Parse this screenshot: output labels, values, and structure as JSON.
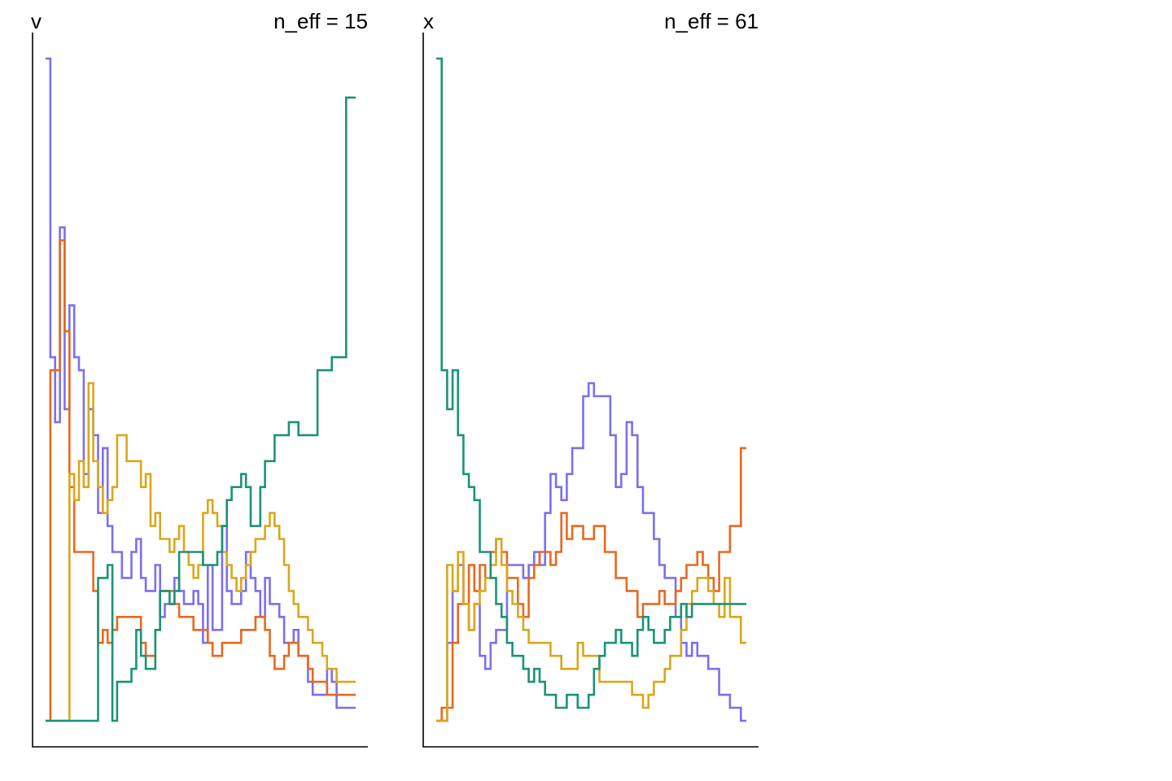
{
  "chart_data": [
    {
      "type": "line",
      "step": true,
      "title": "v",
      "annotation": "n_eff = 15",
      "xlabel": "",
      "ylabel": "",
      "axis_ticks": false,
      "grid": false,
      "series": [
        {
          "color": "#7b6ff0",
          "values": [
            51,
            28,
            23,
            38,
            24,
            32,
            28,
            27,
            19,
            24,
            22,
            16,
            21,
            15,
            13,
            13,
            11,
            11,
            13,
            14,
            11,
            10,
            10,
            12,
            8,
            9,
            9,
            11,
            10,
            9,
            9,
            10,
            9,
            6,
            12,
            7,
            7,
            15,
            10,
            9,
            9,
            10,
            13,
            11,
            10,
            8,
            11,
            9,
            9,
            8,
            6,
            6,
            7,
            5,
            5,
            3,
            2,
            2,
            2,
            4,
            3,
            1,
            1,
            1,
            1
          ]
        },
        {
          "color": "#e8681e",
          "values": [
            0,
            27,
            27,
            37,
            30,
            18,
            13,
            13,
            13,
            13,
            10,
            6,
            7,
            6,
            7,
            8,
            8,
            8,
            8,
            8,
            6,
            5,
            5,
            7,
            10,
            10,
            10,
            9,
            8,
            8,
            8,
            7,
            7,
            7,
            6,
            5,
            5,
            6,
            6,
            6,
            6,
            7,
            7,
            7,
            8,
            8,
            7,
            5,
            4,
            4,
            5,
            6,
            6,
            5,
            5,
            4,
            3,
            3,
            3,
            2,
            2,
            2,
            2,
            2,
            2
          ]
        },
        {
          "color": "#d9a71e",
          "values": [
            0,
            0,
            0,
            0,
            0,
            19,
            17,
            20,
            18,
            26,
            20,
            18,
            16,
            17,
            18,
            22,
            22,
            20,
            20,
            20,
            18,
            19,
            15,
            16,
            14,
            14,
            13,
            14,
            15,
            13,
            12,
            11,
            12,
            16,
            17,
            16,
            15,
            13,
            12,
            11,
            10,
            11,
            12,
            13,
            14,
            14,
            15,
            16,
            15,
            14,
            12,
            10,
            9,
            8,
            8,
            7,
            6,
            6,
            5,
            4,
            4,
            3,
            3,
            3,
            3
          ]
        },
        {
          "color": "#1b9377",
          "values": [
            0,
            0,
            0,
            0,
            0,
            0,
            0,
            0,
            0,
            0,
            0,
            11,
            11,
            12,
            0,
            3,
            3,
            3,
            4,
            7,
            5,
            4,
            4,
            7,
            10,
            10,
            9,
            10,
            13,
            13,
            13,
            13,
            13,
            12,
            12,
            12,
            13,
            15,
            17,
            18,
            18,
            19,
            18,
            15,
            15,
            18,
            20,
            20,
            22,
            22,
            22,
            23,
            23,
            22,
            22,
            22,
            22,
            27,
            27,
            27,
            28,
            28,
            28,
            48,
            48
          ]
        }
      ]
    },
    {
      "type": "line",
      "step": true,
      "title": "x",
      "annotation": "n_eff = 61",
      "xlabel": "",
      "ylabel": "",
      "axis_ticks": false,
      "grid": false,
      "series": [
        {
          "color": "#7b6ff0",
          "values": [
            0,
            0,
            6,
            10,
            12,
            9,
            7,
            9,
            5,
            4,
            6,
            7,
            7,
            12,
            12,
            12,
            11,
            12,
            13,
            12,
            16,
            19,
            18,
            17,
            19,
            21,
            21,
            25,
            26,
            25,
            25,
            25,
            22,
            18,
            19,
            23,
            22,
            18,
            16,
            16,
            14,
            12,
            11,
            11,
            8,
            6,
            5,
            6,
            5,
            5,
            4,
            4,
            2,
            2,
            1,
            1,
            0
          ]
        },
        {
          "color": "#e8681e",
          "values": [
            0,
            1,
            1,
            6,
            9,
            9,
            12,
            10,
            12,
            11,
            13,
            14,
            13,
            11,
            11,
            9,
            8,
            11,
            12,
            13,
            13,
            12,
            13,
            16,
            14,
            15,
            15,
            14,
            14,
            15,
            15,
            13,
            13,
            11,
            11,
            10,
            10,
            8,
            9,
            9,
            9,
            10,
            9,
            9,
            10,
            11,
            12,
            12,
            13,
            12,
            11,
            10,
            13,
            13,
            15,
            15,
            21
          ]
        },
        {
          "color": "#d9a71e",
          "values": [
            0,
            0,
            12,
            10,
            13,
            9,
            7,
            9,
            10,
            11,
            12,
            14,
            12,
            10,
            9,
            8,
            7,
            6,
            6,
            6,
            6,
            5,
            5,
            4,
            4,
            4,
            6,
            5,
            5,
            5,
            3,
            3,
            3,
            3,
            3,
            3,
            2,
            2,
            1,
            2,
            3,
            3,
            4,
            5,
            5,
            7,
            9,
            10,
            11,
            11,
            10,
            9,
            8,
            11,
            8,
            8,
            6
          ]
        },
        {
          "color": "#1b9377",
          "values": [
            51,
            27,
            24,
            27,
            22,
            19,
            18,
            17,
            13,
            13,
            11,
            9,
            8,
            6,
            5,
            5,
            4,
            3,
            4,
            3,
            2,
            2,
            1,
            1,
            2,
            2,
            1,
            1,
            2,
            4,
            5,
            6,
            6,
            7,
            6,
            6,
            5,
            7,
            8,
            7,
            6,
            6,
            7,
            8,
            8,
            9,
            8,
            9,
            9,
            9,
            9,
            9,
            9,
            9,
            9,
            9,
            9
          ]
        }
      ]
    }
  ]
}
